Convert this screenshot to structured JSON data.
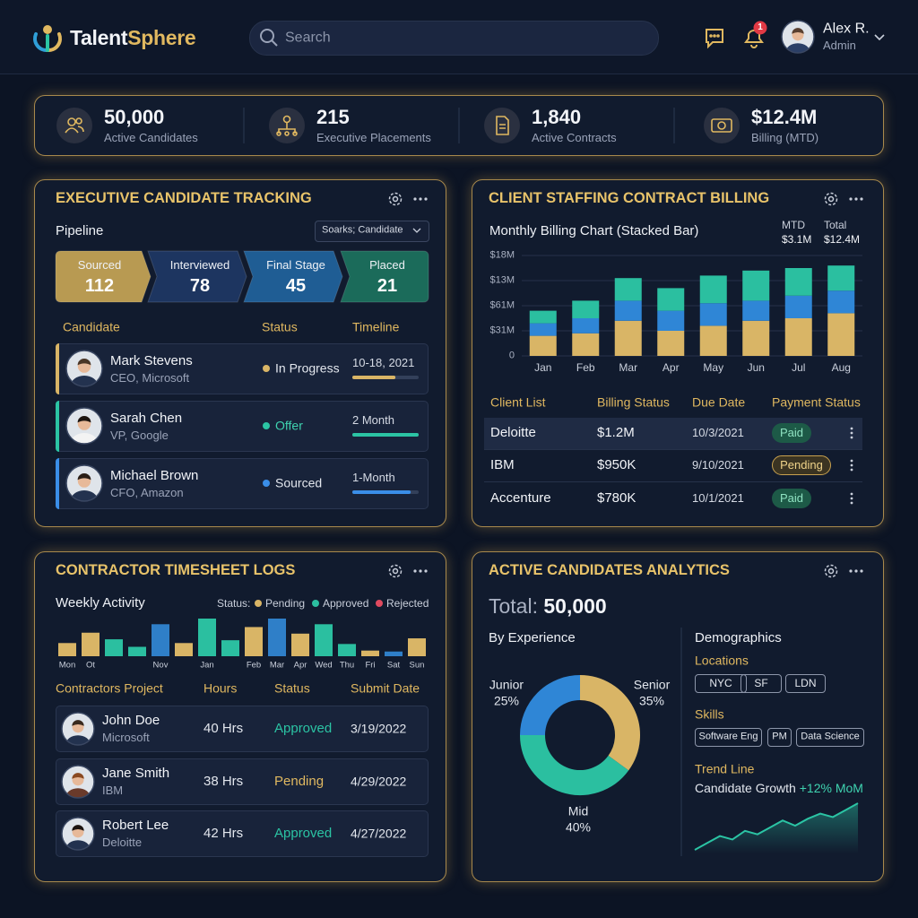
{
  "header": {
    "brand_part1": "Talent",
    "brand_part2": "Sphere",
    "search_placeholder": "Search",
    "notification_count": "1",
    "user_name": "Alex R.",
    "user_role": "Admin"
  },
  "kpis": [
    {
      "value": "50,000",
      "label": "Active Candidates"
    },
    {
      "value": "215",
      "label": "Executive Placements"
    },
    {
      "value": "1,840",
      "label": "Active Contracts"
    },
    {
      "value": "$12.4M",
      "label": "Billing (MTD)"
    }
  ],
  "tracking": {
    "title": "EXECUTIVE CANDIDATE TRACKING",
    "pipeline_label": "Pipeline",
    "filter": "Soarks; Candidate",
    "stages": [
      {
        "name": "Sourced",
        "count": "112",
        "color": "#b89a52"
      },
      {
        "name": "Interviewed",
        "count": "78",
        "color": "#1d3560"
      },
      {
        "name": "Final Stage",
        "count": "45",
        "color": "#1f5d94"
      },
      {
        "name": "Placed",
        "count": "21",
        "color": "#1b6b5a"
      }
    ],
    "columns": [
      "Candidate",
      "Status",
      "Timeline"
    ],
    "rows": [
      {
        "name": "Mark Stevens",
        "role": "CEO, Microsoft",
        "status": "In Progress",
        "timeline": "10-18, 2021",
        "progress": 65,
        "color": "#d9b566",
        "status_color": "#e3e7ee"
      },
      {
        "name": "Sarah Chen",
        "role": "VP, Google",
        "status": "Offer",
        "timeline": "2 Month",
        "progress": 100,
        "color": "#2bc4a4",
        "status_color": "#3fd3b0"
      },
      {
        "name": "Michael Brown",
        "role": "CFO, Amazon",
        "status": "Sourced",
        "timeline": "1-Month",
        "progress": 88,
        "color": "#3a8ee8",
        "status_color": "#e3e7ee"
      }
    ]
  },
  "billing": {
    "title": "CLIENT STAFFING CONTRACT BILLING",
    "mtd_label": "MTD",
    "mtd_value": "$3.1M",
    "total_label": "Total",
    "total_value": "$12.4M",
    "chart_data": {
      "type": "bar",
      "stacked": true,
      "title": "Monthly Billing Chart (Stacked Bar)",
      "categories": [
        "Jan",
        "Feb",
        "Mar",
        "Apr",
        "May",
        "Jun",
        "Jul",
        "Aug"
      ],
      "series": [
        {
          "color": "#d9b566",
          "values": [
            0.8,
            0.9,
            1.4,
            1.0,
            1.2,
            1.4,
            1.5,
            1.7
          ]
        },
        {
          "color": "#2f86d6",
          "values": [
            0.5,
            0.6,
            0.8,
            0.8,
            0.9,
            0.8,
            0.9,
            0.9
          ]
        },
        {
          "color": "#2bbfa0",
          "values": [
            0.5,
            0.7,
            0.9,
            0.9,
            1.1,
            1.2,
            1.1,
            1.0
          ]
        }
      ],
      "ylim": [
        0,
        4
      ],
      "yticks": [
        0,
        {
          "value": 1,
          "label": "$31M"
        },
        {
          "value": 2,
          "label": "$61M"
        },
        {
          "value": 3,
          "label": "$13M"
        },
        {
          "value": 4,
          "label": "$18M"
        }
      ],
      "grid": true
    },
    "columns": [
      "Client List",
      "Billing Status",
      "Due Date",
      "Payment Status"
    ],
    "rows": [
      {
        "client": "Deloitte",
        "amount": "$1.2M",
        "due": "10/3/2021",
        "status": "Paid"
      },
      {
        "client": "IBM",
        "amount": "$950K",
        "due": "9/10/2021",
        "status": "Pending"
      },
      {
        "client": "Accenture",
        "amount": "$780K",
        "due": "10/1/2021",
        "status": "Paid"
      }
    ]
  },
  "timesheet": {
    "title": "CONTRACTOR TIMESHEET LOGS",
    "chart_data": {
      "type": "bar",
      "title": "Weekly Activity",
      "legend_title": "Status:",
      "legend": [
        {
          "name": "Pending",
          "color": "#d9b566"
        },
        {
          "name": "Approved",
          "color": "#2bbfa0"
        },
        {
          "name": "Rejected",
          "color": "#e04a5f"
        }
      ],
      "categories": [
        "Mon",
        "Ot",
        null,
        null,
        "Nov",
        null,
        "Jan",
        null,
        "Feb",
        "Mar",
        "Apr",
        "Wed",
        "Thu",
        "Fri",
        "Sat",
        "Sun"
      ],
      "values": [
        14,
        25,
        18,
        10,
        34,
        14,
        40,
        17,
        31,
        40,
        24,
        34,
        13,
        6,
        5,
        19
      ],
      "colors": [
        "#d9b566",
        "#d9b566",
        "#2bbfa0",
        "#2bbfa0",
        "#2f7fc8",
        "#d9b566",
        "#2bbfa0",
        "#2bbfa0",
        "#d9b566",
        "#2f7fc8",
        "#d9b566",
        "#2bbfa0",
        "#2bbfa0",
        "#d9b566",
        "#2f7fc8",
        "#d9b566"
      ]
    },
    "columns": [
      "Contractors Project",
      "Hours",
      "Status",
      "Submit Date"
    ],
    "rows": [
      {
        "name": "John Doe",
        "company": "Microsoft",
        "hours": "40 Hrs",
        "status": "Approved",
        "date": "3/19/2022",
        "status_color": "#2bc4a4"
      },
      {
        "name": "Jane Smith",
        "company": "IBM",
        "hours": "38 Hrs",
        "status": "Pending",
        "date": "4/29/2022",
        "status_color": "#e0b860"
      },
      {
        "name": "Robert Lee",
        "company": "Deloitte",
        "hours": "42 Hrs",
        "status": "Approved",
        "date": "4/27/2022",
        "status_color": "#2bc4a4"
      }
    ]
  },
  "analytics": {
    "title": "ACTIVE CANDIDATES ANALYTICS",
    "total_label": "Total:",
    "total_value": "50,000",
    "chart_data": {
      "type": "pie",
      "donut": true,
      "title": "By Experience",
      "categories": [
        "Senior",
        "Mid",
        "Junior"
      ],
      "values": [
        35,
        40,
        25
      ],
      "value_labels": [
        "35%",
        "40%",
        "25%"
      ],
      "colors": [
        "#d9b566",
        "#2bbfa0",
        "#2f86d6"
      ]
    },
    "demographics_title": "Demographics",
    "locations_title": "Locations",
    "locations": [
      "NYC",
      "SF",
      "LDN"
    ],
    "skills_title": "Skills",
    "skills": [
      "Software Eng",
      "PM",
      "Data Science"
    ],
    "trend_title": "Trend Line",
    "trend_text": "Candidate Growth",
    "trend_delta": "+12% MoM",
    "trend": {
      "type": "line",
      "color": "#2bc4a4",
      "values": [
        1,
        1.8,
        2.6,
        2.2,
        3.2,
        2.8,
        3.6,
        4.4,
        3.8,
        4.6,
        5.2,
        4.8,
        5.6,
        6.4
      ]
    }
  }
}
